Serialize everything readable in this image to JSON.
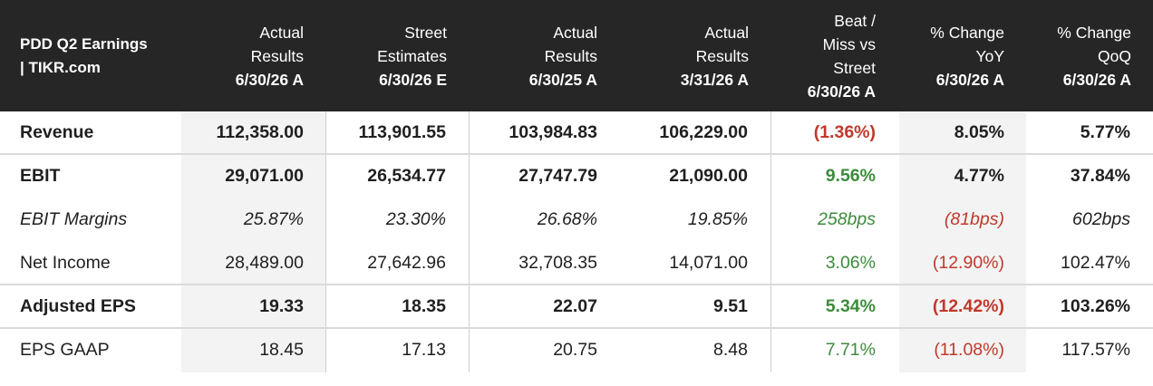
{
  "header": {
    "title_line1": "PDD Q2 Earnings",
    "title_line2": "| TIKR.com",
    "columns": [
      {
        "l1": "",
        "l2": "Actual",
        "l3": "Results",
        "l4": "6/30/26 A"
      },
      {
        "l1": "",
        "l2": "Street",
        "l3": "Estimates",
        "l4": "6/30/26 E"
      },
      {
        "l1": "",
        "l2": "Actual",
        "l3": "Results",
        "l4": "6/30/25 A"
      },
      {
        "l1": "",
        "l2": "Actual",
        "l3": "Results",
        "l4": "3/31/26 A"
      },
      {
        "l1": "Beat /",
        "l2": "Miss vs",
        "l3": "Street",
        "l4": "6/30/26 A"
      },
      {
        "l1": "",
        "l2": "% Change",
        "l3": "YoY",
        "l4": "6/30/26 A"
      },
      {
        "l1": "",
        "l2": "% Change",
        "l3": "QoQ",
        "l4": "6/30/26 A"
      }
    ]
  },
  "rows": [
    {
      "label": "Revenue",
      "values": [
        "112,358.00",
        "113,901.55",
        "103,984.83",
        "106,229.00",
        "(1.36%)",
        "8.05%",
        "5.77%"
      ]
    },
    {
      "label": "EBIT",
      "values": [
        "29,071.00",
        "26,534.77",
        "27,747.79",
        "21,090.00",
        "9.56%",
        "4.77%",
        "37.84%"
      ]
    },
    {
      "label": "EBIT Margins",
      "values": [
        "25.87%",
        "23.30%",
        "26.68%",
        "19.85%",
        "258bps",
        "(81bps)",
        "602bps"
      ]
    },
    {
      "label": "Net Income",
      "values": [
        "28,489.00",
        "27,642.96",
        "32,708.35",
        "14,071.00",
        "3.06%",
        "(12.90%)",
        "102.47%"
      ]
    },
    {
      "label": "Adjusted EPS",
      "values": [
        "19.33",
        "18.35",
        "22.07",
        "9.51",
        "5.34%",
        "(12.42%)",
        "103.26%"
      ]
    },
    {
      "label": "EPS GAAP",
      "values": [
        "18.45",
        "17.13",
        "20.75",
        "8.48",
        "7.71%",
        "(11.08%)",
        "117.57%"
      ]
    }
  ],
  "colors": {
    "header_bg": "#262626",
    "negative": "#c0392b",
    "positive": "#3d8b3d",
    "shaded_column": "#f3f3f3"
  }
}
